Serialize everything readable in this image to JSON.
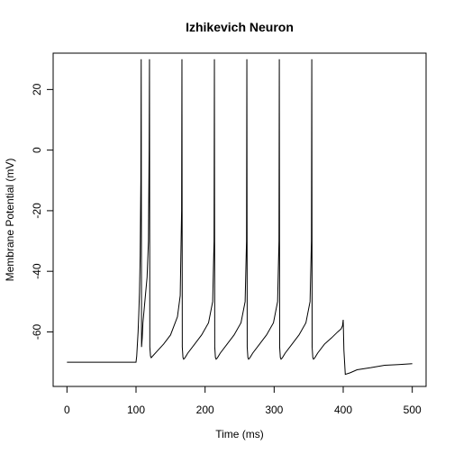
{
  "chart_data": {
    "type": "line",
    "title": "Izhikevich Neuron",
    "xlabel": "Time (ms)",
    "ylabel": "Membrane Potential (mV)",
    "xlim": [
      -20,
      520
    ],
    "ylim": [
      -78,
      32
    ],
    "xticks": [
      0,
      100,
      200,
      300,
      400,
      500
    ],
    "yticks": [
      -60,
      -40,
      -20,
      0,
      20
    ],
    "grid": false,
    "line_color": "#000000",
    "series": [
      {
        "x": [
          0,
          100,
          101,
          102,
          103,
          104,
          105,
          106,
          107,
          107.5,
          108,
          109,
          110,
          112,
          114,
          116,
          118,
          119,
          119.5,
          120,
          121,
          122,
          124,
          130,
          140,
          150,
          160,
          164,
          166,
          166.5,
          167,
          168,
          169,
          171,
          175,
          185,
          195,
          205,
          211,
          213,
          213.5,
          214,
          215,
          216,
          218,
          222,
          232,
          242,
          252,
          258,
          260,
          260.5,
          261,
          262,
          263,
          265,
          269,
          279,
          289,
          299,
          305,
          307,
          307.5,
          308,
          309,
          310,
          312,
          316,
          326,
          336,
          346,
          352,
          354,
          354.5,
          355,
          356,
          357,
          359,
          363,
          373,
          383,
          392,
          397,
          399,
          400,
          401,
          403,
          410,
          420,
          440,
          460,
          480,
          500
        ],
        "y": [
          -70,
          -70,
          -68,
          -64,
          -60,
          -54,
          -47,
          -35,
          -10,
          30,
          -65,
          -62,
          -57,
          -52,
          -47,
          -42,
          -30,
          0,
          30,
          -65,
          -68,
          -68.5,
          -68,
          -66.5,
          -64,
          -61,
          -55,
          -48,
          -20,
          30,
          -65,
          -68.5,
          -69,
          -68.5,
          -67,
          -64,
          -61,
          -57,
          -50,
          -30,
          30,
          -65,
          -68.5,
          -69,
          -68.5,
          -67,
          -64,
          -61,
          -57,
          -50,
          -30,
          30,
          -65,
          -68.5,
          -69,
          -68.5,
          -67,
          -64,
          -61,
          -57,
          -50,
          -30,
          30,
          -65,
          -68.5,
          -69,
          -68.5,
          -67,
          -64,
          -61,
          -57,
          -50,
          -30,
          30,
          -65,
          -68.5,
          -69,
          -68.5,
          -67,
          -64,
          -62,
          -60,
          -59,
          -58,
          -56,
          -66,
          -74,
          -73.5,
          -72.5,
          -71.8,
          -71,
          -70.8,
          -70.5
        ]
      }
    ]
  }
}
